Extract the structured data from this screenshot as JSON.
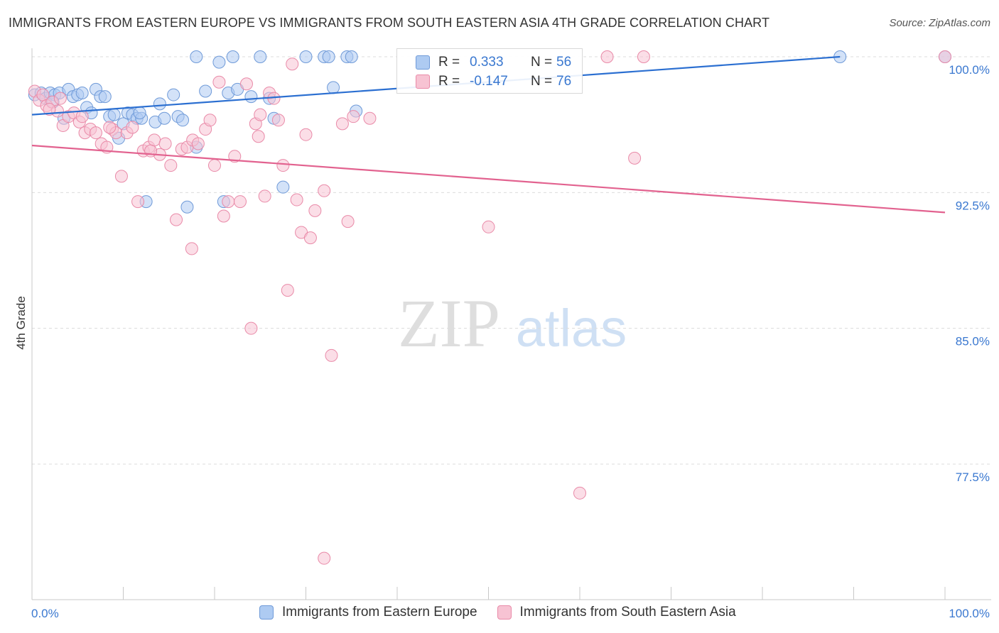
{
  "title": "IMMIGRANTS FROM EASTERN EUROPE VS IMMIGRANTS FROM SOUTH EASTERN ASIA 4TH GRADE CORRELATION CHART",
  "source": "Source: ZipAtlas.com",
  "watermark": {
    "zip": "ZIP",
    "atlas": "atlas"
  },
  "legend_box": {
    "rows": [
      {
        "r_label": "R =",
        "r_value": "0.333",
        "n_label": "N =",
        "n_value": "56",
        "color": "#aecbf2"
      },
      {
        "r_label": "R =",
        "r_value": "-0.147",
        "n_label": "N =",
        "n_value": "76",
        "color": "#f7c3d3"
      }
    ]
  },
  "bottom_legend": [
    {
      "label": "Immigrants from Eastern Europe",
      "color": "#aecbf2"
    },
    {
      "label": "Immigrants from South Eastern Asia",
      "color": "#f7c3d3"
    }
  ],
  "chart_data": {
    "type": "scatter",
    "title": "IMMIGRANTS FROM EASTERN EUROPE VS IMMIGRANTS FROM SOUTH EASTERN ASIA 4TH GRADE CORRELATION CHART",
    "xlabel": "",
    "ylabel": "4th Grade",
    "xlim": [
      0,
      100
    ],
    "ylim": [
      70.0,
      101.0
    ],
    "x_tick_labels": [
      {
        "value": 0,
        "label": "0.0%"
      },
      {
        "value": 100,
        "label": "100.0%"
      }
    ],
    "x_minor_ticks": [
      0,
      10,
      20,
      30,
      40,
      50,
      60,
      70,
      80,
      90,
      100
    ],
    "y_ticks": [
      {
        "value": 100.0,
        "label": "100.0%"
      },
      {
        "value": 92.5,
        "label": "92.5%"
      },
      {
        "value": 85.0,
        "label": "85.0%"
      },
      {
        "value": 77.5,
        "label": "77.5%"
      }
    ],
    "grid": true,
    "series": [
      {
        "name": "Immigrants from Eastern Europe",
        "color": "#6f9ad8",
        "fill": "#aecbf2",
        "line_color": "#2b6fd1",
        "trend": {
          "x": [
            0,
            88.5
          ],
          "y": [
            96.8,
            100.0
          ]
        },
        "points": [
          [
            0.3,
            97.9
          ],
          [
            1.0,
            98.0
          ],
          [
            1.5,
            97.7
          ],
          [
            2.0,
            98.0
          ],
          [
            2.5,
            97.9
          ],
          [
            3.0,
            98.0
          ],
          [
            4.0,
            98.2
          ],
          [
            4.5,
            97.8
          ],
          [
            5.0,
            97.9
          ],
          [
            5.5,
            98.0
          ],
          [
            6.0,
            97.2
          ],
          [
            7.0,
            98.2
          ],
          [
            7.5,
            97.8
          ],
          [
            8.0,
            97.8
          ],
          [
            8.5,
            96.7
          ],
          [
            9.0,
            96.8
          ],
          [
            10.0,
            96.3
          ],
          [
            10.5,
            96.9
          ],
          [
            11.0,
            96.8
          ],
          [
            11.5,
            96.6
          ],
          [
            12.0,
            96.6
          ],
          [
            12.5,
            92.0
          ],
          [
            13.5,
            96.4
          ],
          [
            14.0,
            97.4
          ],
          [
            15.5,
            97.9
          ],
          [
            16.0,
            96.7
          ],
          [
            16.5,
            96.5
          ],
          [
            17.0,
            91.7
          ],
          [
            18.0,
            95.0
          ],
          [
            18.0,
            100.0
          ],
          [
            19.0,
            98.1
          ],
          [
            20.5,
            99.7
          ],
          [
            21.0,
            92.0
          ],
          [
            21.5,
            98.0
          ],
          [
            22.0,
            100.0
          ],
          [
            22.5,
            98.2
          ],
          [
            24.0,
            97.8
          ],
          [
            25.0,
            100.0
          ],
          [
            26.0,
            97.7
          ],
          [
            26.5,
            96.6
          ],
          [
            27.5,
            92.8
          ],
          [
            30.0,
            100.0
          ],
          [
            32.0,
            100.0
          ],
          [
            32.5,
            100.0
          ],
          [
            33.0,
            98.3
          ],
          [
            34.5,
            100.0
          ],
          [
            35.0,
            100.0
          ],
          [
            35.5,
            97.0
          ],
          [
            3.5,
            96.6
          ],
          [
            6.5,
            96.9
          ],
          [
            9.5,
            95.5
          ],
          [
            11.8,
            96.9
          ],
          [
            88.5,
            100.0
          ],
          [
            100.0,
            100.0
          ],
          [
            2.3,
            97.5
          ],
          [
            14.5,
            96.6
          ]
        ]
      },
      {
        "name": "Immigrants from South Eastern Asia",
        "color": "#e98aa8",
        "fill": "#f7c3d3",
        "line_color": "#e2628f",
        "trend": {
          "x": [
            0,
            100
          ],
          "y": [
            95.1,
            91.4
          ]
        },
        "points": [
          [
            0.3,
            98.1
          ],
          [
            0.8,
            97.6
          ],
          [
            1.2,
            97.9
          ],
          [
            1.6,
            97.3
          ],
          [
            2.2,
            97.5
          ],
          [
            2.8,
            97.0
          ],
          [
            3.4,
            96.2
          ],
          [
            4.0,
            96.7
          ],
          [
            4.6,
            96.9
          ],
          [
            5.2,
            96.4
          ],
          [
            5.8,
            95.8
          ],
          [
            6.4,
            96.0
          ],
          [
            7.0,
            95.8
          ],
          [
            7.6,
            95.2
          ],
          [
            8.2,
            95.0
          ],
          [
            8.8,
            96.0
          ],
          [
            9.2,
            95.8
          ],
          [
            9.8,
            93.4
          ],
          [
            10.4,
            95.8
          ],
          [
            11.0,
            96.1
          ],
          [
            11.6,
            92.0
          ],
          [
            12.2,
            94.8
          ],
          [
            12.8,
            95.0
          ],
          [
            13.4,
            95.4
          ],
          [
            14.0,
            94.6
          ],
          [
            14.6,
            95.2
          ],
          [
            15.2,
            94.0
          ],
          [
            15.8,
            91.0
          ],
          [
            16.4,
            94.9
          ],
          [
            17.0,
            95.0
          ],
          [
            17.6,
            95.4
          ],
          [
            18.2,
            95.2
          ],
          [
            17.5,
            89.4
          ],
          [
            19.0,
            96.0
          ],
          [
            19.5,
            96.5
          ],
          [
            20.0,
            94.0
          ],
          [
            20.5,
            98.6
          ],
          [
            21.0,
            91.2
          ],
          [
            21.5,
            92.0
          ],
          [
            22.2,
            94.5
          ],
          [
            22.8,
            92.0
          ],
          [
            23.5,
            98.5
          ],
          [
            24.0,
            85.0
          ],
          [
            24.5,
            96.3
          ],
          [
            25.0,
            96.8
          ],
          [
            25.5,
            92.3
          ],
          [
            26.0,
            98.0
          ],
          [
            26.5,
            97.7
          ],
          [
            27.0,
            96.5
          ],
          [
            27.5,
            94.0
          ],
          [
            28.0,
            87.1
          ],
          [
            28.5,
            99.6
          ],
          [
            29.0,
            92.1
          ],
          [
            29.5,
            90.3
          ],
          [
            30.0,
            95.7
          ],
          [
            30.5,
            90.0
          ],
          [
            31.0,
            91.5
          ],
          [
            32.0,
            92.6
          ],
          [
            32.8,
            83.5
          ],
          [
            34.0,
            96.3
          ],
          [
            34.6,
            90.9
          ],
          [
            35.2,
            96.7
          ],
          [
            37.0,
            96.6
          ],
          [
            50.0,
            90.6
          ],
          [
            60.0,
            75.9
          ],
          [
            63.0,
            100.0
          ],
          [
            67.0,
            100.0
          ],
          [
            66.0,
            94.4
          ],
          [
            32.0,
            72.3
          ],
          [
            100.0,
            100.0
          ],
          [
            1.9,
            97.1
          ],
          [
            3.1,
            97.7
          ],
          [
            5.5,
            96.7
          ],
          [
            8.5,
            96.1
          ],
          [
            24.8,
            95.6
          ],
          [
            13.0,
            94.8
          ]
        ]
      }
    ]
  }
}
